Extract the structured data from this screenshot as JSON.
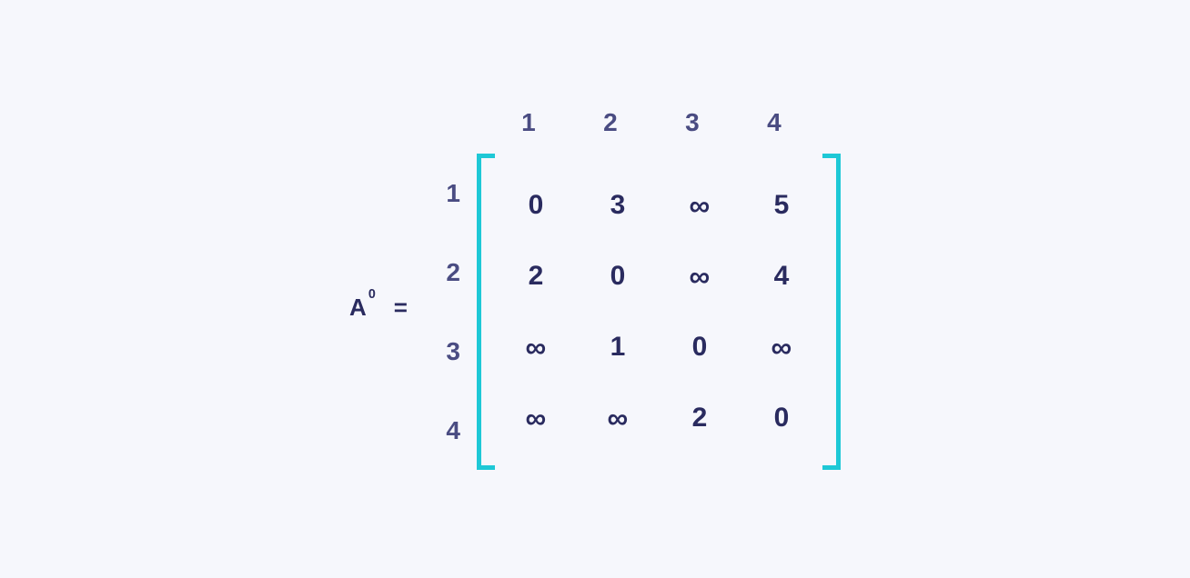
{
  "background_color": "#f6f7fc",
  "text_color": "#2a2b5f",
  "header_color": "#4a4c82",
  "bracket_color": "#1ec8d6",
  "bracket_width": 5,
  "font_size_label": 26,
  "font_size_header": 28,
  "font_size_cell": 30,
  "matrix": {
    "name": "A",
    "superscript": "0",
    "equals": "=",
    "col_headers": [
      "1",
      "2",
      "3",
      "4"
    ],
    "row_headers": [
      "1",
      "2",
      "3",
      "4"
    ],
    "cells": [
      [
        "0",
        "3",
        "∞",
        "5"
      ],
      [
        "2",
        "0",
        "∞",
        "4"
      ],
      [
        "∞",
        "1",
        "0",
        "∞"
      ],
      [
        "∞",
        "∞",
        "2",
        "0"
      ]
    ]
  }
}
